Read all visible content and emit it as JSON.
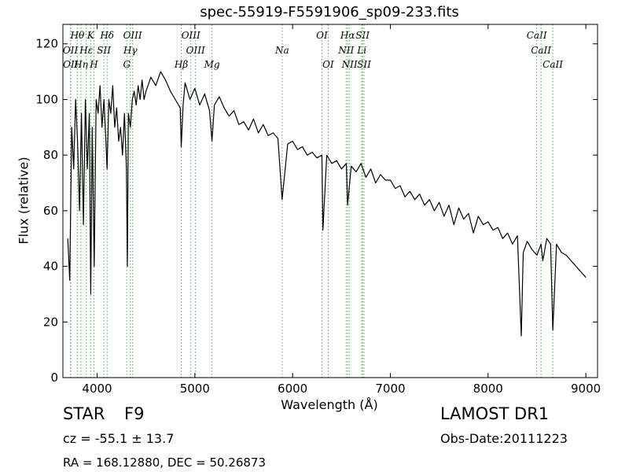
{
  "chart_data": {
    "type": "line",
    "title": "spec-55919-F5591906_sp09-233.fits",
    "xlabel": "Wavelength (Å)",
    "ylabel": "Flux (relative)",
    "xlim": [
      3650,
      9120
    ],
    "ylim": [
      0,
      127
    ],
    "xticks": [
      4000,
      5000,
      6000,
      7000,
      8000,
      9000
    ],
    "yticks": [
      0,
      20,
      40,
      60,
      80,
      100,
      120
    ],
    "grid": false,
    "series_color": "#000000",
    "marker_color": "#4caf50",
    "series": [
      {
        "x": [
          3700,
          3720,
          3740,
          3760,
          3780,
          3800,
          3820,
          3840,
          3860,
          3880,
          3900,
          3920,
          3935,
          3950,
          3970,
          3990,
          4010,
          4030,
          4050,
          4070,
          4090,
          4102,
          4120,
          4140,
          4160,
          4180,
          4200,
          4220,
          4240,
          4260,
          4280,
          4300,
          4310,
          4320,
          4340,
          4360,
          4380,
          4400,
          4420,
          4440,
          4460,
          4480,
          4500,
          4550,
          4600,
          4650,
          4700,
          4750,
          4800,
          4850,
          4861,
          4880,
          4900,
          4950,
          5000,
          5050,
          5100,
          5150,
          5175,
          5200,
          5250,
          5300,
          5350,
          5400,
          5450,
          5500,
          5550,
          5600,
          5650,
          5700,
          5750,
          5800,
          5850,
          5893,
          5950,
          6000,
          6050,
          6100,
          6150,
          6200,
          6250,
          6300,
          6310,
          6350,
          6400,
          6450,
          6500,
          6550,
          6563,
          6600,
          6650,
          6700,
          6750,
          6800,
          6850,
          6900,
          6950,
          7000,
          7050,
          7100,
          7150,
          7200,
          7250,
          7300,
          7350,
          7400,
          7450,
          7500,
          7550,
          7600,
          7650,
          7700,
          7750,
          7800,
          7850,
          7900,
          7950,
          8000,
          8050,
          8100,
          8150,
          8200,
          8250,
          8300,
          8340,
          8360,
          8400,
          8450,
          8500,
          8542,
          8560,
          8600,
          8640,
          8662,
          8700,
          8750,
          8800,
          8850,
          8900,
          8950,
          9000
        ],
        "y": [
          50,
          35,
          90,
          75,
          100,
          85,
          60,
          95,
          55,
          100,
          75,
          95,
          30,
          90,
          40,
          100,
          95,
          105,
          90,
          100,
          85,
          75,
          100,
          95,
          105,
          90,
          97,
          85,
          90,
          80,
          95,
          75,
          40,
          95,
          90,
          100,
          103,
          98,
          105,
          100,
          107,
          100,
          103,
          108,
          105,
          110,
          107,
          103,
          100,
          97,
          83,
          98,
          106,
          100,
          104,
          98,
          102,
          96,
          85,
          98,
          101,
          97,
          94,
          96,
          91,
          92,
          89,
          93,
          88,
          91,
          87,
          88,
          86,
          64,
          84,
          85,
          82,
          83,
          80,
          81,
          79,
          80,
          53,
          80,
          77,
          78,
          75,
          77,
          62,
          76,
          74,
          77,
          72,
          75,
          70,
          73,
          71,
          71,
          68,
          69,
          65,
          67,
          64,
          66,
          62,
          64,
          60,
          63,
          58,
          62,
          55,
          61,
          57,
          59,
          52,
          58,
          55,
          56,
          53,
          54,
          50,
          52,
          48,
          51,
          15,
          45,
          49,
          46,
          44,
          48,
          42,
          50,
          48,
          17,
          48,
          45,
          44,
          42,
          40,
          38,
          36
        ]
      }
    ],
    "lines": [
      {
        "name": "Hθ",
        "x": 3798,
        "row": 1
      },
      {
        "name": "OII",
        "x": 3727,
        "row": 2
      },
      {
        "name": "OII",
        "x": 3729,
        "row": 3
      },
      {
        "name": "Hη",
        "x": 3835,
        "row": 3
      },
      {
        "name": "Hε",
        "x": 3889,
        "row": 2
      },
      {
        "name": "K",
        "x": 3934,
        "row": 1
      },
      {
        "name": "H",
        "x": 3968,
        "row": 3
      },
      {
        "name": "SII",
        "x": 4069,
        "row": 2
      },
      {
        "name": "Hδ",
        "x": 4102,
        "row": 1
      },
      {
        "name": "OIII",
        "x": 4363,
        "row": 1
      },
      {
        "name": "Hγ",
        "x": 4340,
        "row": 2
      },
      {
        "name": "G",
        "x": 4304,
        "row": 3
      },
      {
        "name": "OIII",
        "x": 4959,
        "row": 1
      },
      {
        "name": "OIII",
        "x": 5007,
        "row": 2
      },
      {
        "name": "Hβ",
        "x": 4861,
        "row": 3
      },
      {
        "name": "Mg",
        "x": 5175,
        "row": 3
      },
      {
        "name": "Na",
        "x": 5893,
        "row": 2
      },
      {
        "name": "OI",
        "x": 6300,
        "row": 1
      },
      {
        "name": "OI",
        "x": 6364,
        "row": 3
      },
      {
        "name": "Hα",
        "x": 6563,
        "row": 1
      },
      {
        "name": "NII",
        "x": 6548,
        "row": 2
      },
      {
        "name": "NII",
        "x": 6583,
        "row": 3
      },
      {
        "name": "SII",
        "x": 6716,
        "row": 1
      },
      {
        "name": "Li",
        "x": 6708,
        "row": 2
      },
      {
        "name": "SII",
        "x": 6731,
        "row": 3
      },
      {
        "name": "CaII",
        "x": 8498,
        "row": 1
      },
      {
        "name": "CaII",
        "x": 8542,
        "row": 2
      },
      {
        "name": "CaII",
        "x": 8662,
        "row": 3
      }
    ]
  },
  "info": {
    "object_type": "STAR",
    "subclass": "F9",
    "survey": "LAMOST DR1",
    "cz": "cz = -55.1 ± 13.7",
    "obs_date": "Obs-Date:20111223",
    "coords": "RA = 168.12880, DEC = 50.26873"
  }
}
